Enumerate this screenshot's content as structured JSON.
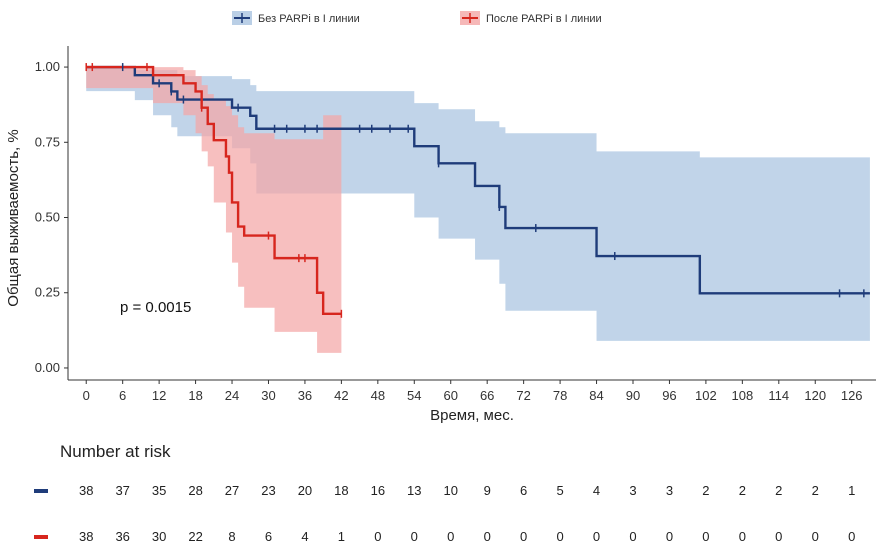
{
  "chart_data": {
    "type": "line",
    "subtype": "kaplan-meier",
    "title": "",
    "xlabel": "Время, мес.",
    "ylabel": "Общая выживаемость, %",
    "xlim": [
      -3,
      130
    ],
    "ylim": [
      -0.04,
      1.07
    ],
    "x_ticks": [
      0,
      6,
      12,
      18,
      24,
      30,
      36,
      42,
      48,
      54,
      60,
      66,
      72,
      78,
      84,
      90,
      96,
      102,
      108,
      114,
      120,
      126
    ],
    "y_ticks": [
      0,
      0.25,
      0.5,
      0.75,
      1.0
    ],
    "y_tick_labels": [
      "0.00",
      "0.25",
      "0.50",
      "0.75",
      "1.00"
    ],
    "annotation": "p = 0.0015",
    "legend_position": "top",
    "series": [
      {
        "name": "Без PARPi в I линии",
        "color": "#1f3c7a",
        "band_color": "#a9c3e0",
        "steps": [
          [
            0,
            1.0
          ],
          [
            8,
            0.973
          ],
          [
            11,
            0.946
          ],
          [
            14,
            0.919
          ],
          [
            15,
            0.892
          ],
          [
            24,
            0.865
          ],
          [
            27,
            0.838
          ],
          [
            28,
            0.795
          ],
          [
            54,
            0.737
          ],
          [
            58,
            0.68
          ],
          [
            64,
            0.605
          ],
          [
            68,
            0.535
          ],
          [
            69,
            0.465
          ],
          [
            84,
            0.372
          ],
          [
            101,
            0.248
          ],
          [
            129,
            0.248
          ]
        ],
        "band": [
          [
            0,
            1.0,
            1.0
          ],
          [
            8,
            0.99,
            0.92
          ],
          [
            11,
            0.99,
            0.89
          ],
          [
            14,
            0.99,
            0.84
          ],
          [
            15,
            0.97,
            0.8
          ],
          [
            24,
            0.96,
            0.77
          ],
          [
            27,
            0.94,
            0.73
          ],
          [
            28,
            0.92,
            0.68
          ],
          [
            54,
            0.88,
            0.58
          ],
          [
            58,
            0.86,
            0.5
          ],
          [
            64,
            0.82,
            0.43
          ],
          [
            68,
            0.8,
            0.36
          ],
          [
            69,
            0.78,
            0.28
          ],
          [
            84,
            0.72,
            0.19
          ],
          [
            101,
            0.7,
            0.09
          ],
          [
            129,
            0.7,
            0.09
          ]
        ],
        "censor_x": [
          6,
          12,
          14,
          16,
          25,
          31,
          33,
          36,
          38,
          45,
          47,
          50,
          53,
          58,
          68,
          74,
          87,
          124,
          128
        ]
      },
      {
        "name": "После PARPi в I линии",
        "color": "#d7261e",
        "band_color": "#f4a6a6",
        "steps": [
          [
            0,
            1.0
          ],
          [
            11,
            0.973
          ],
          [
            16,
            0.946
          ],
          [
            18,
            0.919
          ],
          [
            19,
            0.865
          ],
          [
            20,
            0.811
          ],
          [
            21,
            0.757
          ],
          [
            23,
            0.703
          ],
          [
            23.5,
            0.649
          ],
          [
            24,
            0.55
          ],
          [
            25,
            0.47
          ],
          [
            26,
            0.44
          ],
          [
            31,
            0.365
          ],
          [
            38,
            0.25
          ],
          [
            39,
            0.18
          ],
          [
            42,
            0.18
          ]
        ],
        "band": [
          [
            0,
            1.0,
            1.0
          ],
          [
            11,
            1.0,
            0.93
          ],
          [
            16,
            0.99,
            0.88
          ],
          [
            18,
            0.97,
            0.84
          ],
          [
            19,
            0.94,
            0.78
          ],
          [
            20,
            0.91,
            0.72
          ],
          [
            21,
            0.89,
            0.67
          ],
          [
            23,
            0.87,
            0.55
          ],
          [
            24,
            0.84,
            0.45
          ],
          [
            25,
            0.8,
            0.35
          ],
          [
            26,
            0.78,
            0.27
          ],
          [
            31,
            0.76,
            0.2
          ],
          [
            38,
            0.76,
            0.12
          ],
          [
            39,
            0.84,
            0.05
          ],
          [
            42,
            0.84,
            0.05
          ]
        ],
        "censor_x": [
          0,
          1,
          10,
          19,
          30,
          35,
          36,
          42
        ]
      }
    ],
    "risk_table": {
      "title": "Number at risk",
      "times": [
        0,
        6,
        12,
        18,
        24,
        30,
        36,
        42,
        48,
        54,
        60,
        66,
        72,
        78,
        84,
        90,
        96,
        102,
        108,
        114,
        120,
        126
      ],
      "rows": [
        {
          "name": "Без PARPi в I линии",
          "color": "#1f3c7a",
          "values": [
            38,
            37,
            35,
            28,
            27,
            23,
            20,
            18,
            16,
            13,
            10,
            9,
            6,
            5,
            4,
            3,
            3,
            2,
            2,
            2,
            2,
            1
          ]
        },
        {
          "name": "После PARPi в I линии",
          "color": "#d7261e",
          "values": [
            38,
            36,
            30,
            22,
            8,
            6,
            4,
            1,
            0,
            0,
            0,
            0,
            0,
            0,
            0,
            0,
            0,
            0,
            0,
            0,
            0,
            0
          ]
        }
      ]
    }
  }
}
